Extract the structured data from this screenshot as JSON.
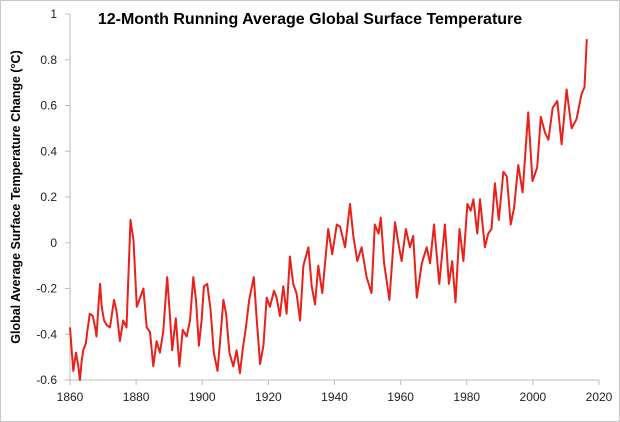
{
  "chart_data": {
    "type": "line",
    "title": "12-Month Running Average Global Surface Temperature",
    "xlabel": "",
    "ylabel": "Global Average Surface Temperature Change (°C)",
    "xlim": [
      1860,
      2020
    ],
    "ylim": [
      -0.6,
      1
    ],
    "x_ticks": [
      "1860",
      "1880",
      "1900",
      "1920",
      "1940",
      "1960",
      "1980",
      "2000",
      "2020"
    ],
    "y_ticks": [
      "-0.6",
      "-0.4",
      "-0.2",
      "0",
      "0.2",
      "0.4",
      "0.6",
      "0.8",
      "1"
    ],
    "grid": false,
    "legend": "none",
    "line_color": "#e8211a",
    "axis_color": "#bdbdbd",
    "series": [
      {
        "x": [
          1860,
          1860.5,
          1861,
          1861.8,
          1862.5,
          1863,
          1863.5,
          1864,
          1864.8,
          1865.2,
          1866,
          1866.9,
          1867.6,
          1868,
          1868.6,
          1869.1,
          1869.6,
          1870.3,
          1871.1,
          1872.1,
          1873.3,
          1874.1,
          1875.1,
          1876.1,
          1877.1,
          1878.3,
          1879.2,
          1880.2,
          1881.2,
          1882.2,
          1883.2,
          1884.2,
          1885.2,
          1886.2,
          1887.2,
          1888.2,
          1889.4,
          1890.2,
          1890.9,
          1892,
          1893.1,
          1894.1,
          1895.3,
          1896.3,
          1897.3,
          1898.1,
          1899,
          1899.8,
          1900.5,
          1901.5,
          1902.5,
          1903.5,
          1904.6,
          1905.4,
          1906.4,
          1907.2,
          1908.2,
          1909.4,
          1910.4,
          1911.4,
          1912.2,
          1913.2,
          1914.2,
          1915.6,
          1916.5,
          1917.5,
          1918.5,
          1919.5,
          1920.5,
          1921.7,
          1922.5,
          1923.5,
          1924.5,
          1925.5,
          1926.5,
          1927.5,
          1928.5,
          1929.6,
          1930.6,
          1932.1,
          1933.1,
          1934.1,
          1935.1,
          1936.3,
          1938.1,
          1939.3,
          1940.7,
          1941.7,
          1943.2,
          1944.7,
          1945.7,
          1946.9,
          1948.2,
          1949.7,
          1951.2,
          1952.2,
          1953.3,
          1954,
          1955,
          1956.6,
          1958.3,
          1959.3,
          1960.3,
          1961.6,
          1962.8,
          1963.8,
          1964.9,
          1966.4,
          1967.9,
          1968.9,
          1970.1,
          1971.7,
          1973.4,
          1974.6,
          1975.6,
          1976.6,
          1977.8,
          1979,
          1980.2,
          1981.2,
          1982,
          1983.2,
          1984,
          1985.5,
          1986.5,
          1987.5,
          1988.5,
          1989.7,
          1991.1,
          1992.1,
          1993.3,
          1994.3,
          1995.6,
          1996.9,
          1998.6,
          1999.9,
          2001.3,
          2002.4,
          2003.7,
          2004.7,
          2006,
          2007.4,
          2008.7,
          2010.2,
          2011.7,
          2013.2,
          2014.7,
          2015.6,
          2016.3
        ],
        "y": [
          -0.37,
          -0.47,
          -0.56,
          -0.48,
          -0.54,
          -0.6,
          -0.52,
          -0.47,
          -0.44,
          -0.39,
          -0.31,
          -0.32,
          -0.37,
          -0.41,
          -0.28,
          -0.18,
          -0.28,
          -0.34,
          -0.36,
          -0.37,
          -0.25,
          -0.3,
          -0.43,
          -0.34,
          -0.37,
          0.1,
          0.01,
          -0.28,
          -0.24,
          -0.2,
          -0.37,
          -0.39,
          -0.54,
          -0.43,
          -0.48,
          -0.39,
          -0.15,
          -0.31,
          -0.47,
          -0.33,
          -0.54,
          -0.38,
          -0.41,
          -0.34,
          -0.15,
          -0.25,
          -0.45,
          -0.34,
          -0.19,
          -0.18,
          -0.29,
          -0.48,
          -0.56,
          -0.43,
          -0.25,
          -0.31,
          -0.48,
          -0.54,
          -0.47,
          -0.57,
          -0.47,
          -0.37,
          -0.25,
          -0.15,
          -0.34,
          -0.53,
          -0.45,
          -0.24,
          -0.28,
          -0.21,
          -0.24,
          -0.32,
          -0.19,
          -0.31,
          -0.06,
          -0.18,
          -0.22,
          -0.34,
          -0.1,
          -0.02,
          -0.19,
          -0.27,
          -0.1,
          -0.22,
          0.06,
          -0.05,
          0.08,
          0.07,
          -0.02,
          0.17,
          0.03,
          -0.08,
          -0.02,
          -0.15,
          -0.22,
          0.08,
          0.04,
          0.11,
          -0.09,
          -0.25,
          0.09,
          0.0,
          -0.08,
          0.06,
          -0.02,
          0.03,
          -0.24,
          -0.09,
          -0.02,
          -0.09,
          0.08,
          -0.18,
          0.08,
          -0.18,
          -0.08,
          -0.26,
          0.06,
          -0.08,
          0.17,
          0.14,
          0.19,
          0.04,
          0.19,
          -0.02,
          0.04,
          0.06,
          0.26,
          0.1,
          0.31,
          0.29,
          0.08,
          0.15,
          0.34,
          0.22,
          0.57,
          0.27,
          0.33,
          0.55,
          0.48,
          0.45,
          0.59,
          0.62,
          0.43,
          0.67,
          0.5,
          0.54,
          0.65,
          0.68,
          0.89
        ]
      }
    ]
  }
}
